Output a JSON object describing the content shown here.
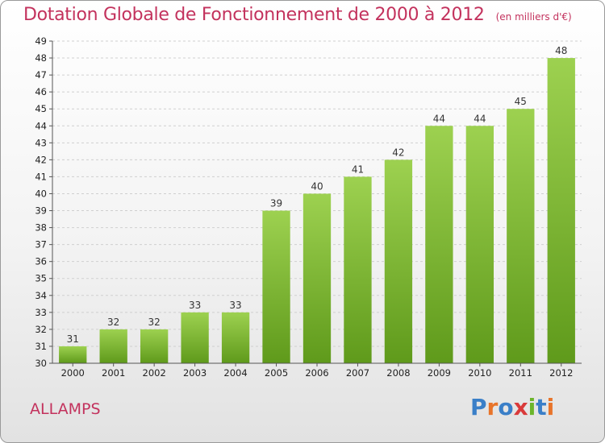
{
  "title": "Dotation Globale de Fonctionnement de 2000 à 2012",
  "unit_note": "(en milliers d'€)",
  "commune": "ALLAMPS",
  "logo": {
    "text": "Proxiti",
    "colors": [
      "#3a7fc8",
      "#e8742a",
      "#3a7fc8",
      "#d93a3a",
      "#6bb52a",
      "#3a7fc8",
      "#e8742a"
    ]
  },
  "colors": {
    "bar_top": "#9dd150",
    "bar_bottom": "#5f9a1b",
    "title": "#c3325d",
    "grid": "#cfcfcf"
  },
  "chart_data": {
    "type": "bar",
    "categories": [
      "2000",
      "2001",
      "2002",
      "2003",
      "2004",
      "2005",
      "2006",
      "2007",
      "2008",
      "2009",
      "2010",
      "2011",
      "2012"
    ],
    "values": [
      31,
      32,
      32,
      33,
      33,
      39,
      40,
      41,
      42,
      44,
      44,
      45,
      48
    ],
    "ylim": [
      30,
      49
    ],
    "yticks": [
      30,
      31,
      32,
      33,
      34,
      35,
      36,
      37,
      38,
      39,
      40,
      41,
      42,
      43,
      44,
      45,
      46,
      47,
      48,
      49
    ],
    "grid": true,
    "title": "Dotation Globale de Fonctionnement de 2000 à 2012",
    "xlabel": "",
    "ylabel": ""
  }
}
